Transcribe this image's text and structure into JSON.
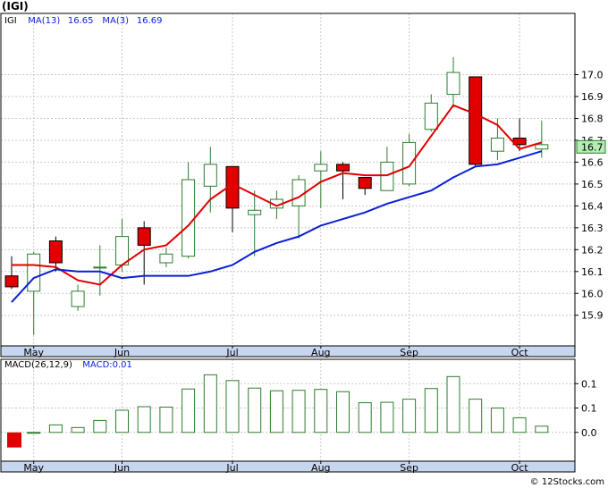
{
  "title": "(IGI)",
  "credit": "© 12Stocks.com",
  "colors": {
    "panel_bg": "#ffffff",
    "panel_border": "#000000",
    "grid": "#c8c8c8",
    "axis_strip": "#c7d6f0",
    "up_candle_stroke": "#2e7d2e",
    "down_candle_fill": "#e00000",
    "ma_fast": "#e00000",
    "ma_slow": "#0a1ed6",
    "macd_bar": "#2e7d2e",
    "macd_neg": "#e00000",
    "price_tag_bg": "#b4ecb4",
    "price_tag_border": "#2e7d2e"
  },
  "chart_data": [
    {
      "type": "candlestick",
      "legend": [
        {
          "label": "IGI",
          "color": "#000000"
        },
        {
          "label": "MA(13)",
          "color": "#0a1ed6"
        },
        {
          "label": "16.65",
          "color": "#0a1ed6"
        },
        {
          "label": "MA(3)",
          "color": "#0a1ed6"
        },
        {
          "label": "16.69",
          "color": "#0a1ed6"
        }
      ],
      "ylim": [
        15.76,
        17.28
      ],
      "yticks": [
        "15.9",
        "16.0",
        "16.1",
        "16.2",
        "16.3",
        "16.4",
        "16.5",
        "16.6",
        "16.7",
        "16.8",
        "16.9",
        "17.0"
      ],
      "xticks": [
        {
          "label": "May",
          "index": 1
        },
        {
          "label": "Jun",
          "index": 5
        },
        {
          "label": "Jul",
          "index": 10
        },
        {
          "label": "Aug",
          "index": 14
        },
        {
          "label": "Sep",
          "index": 18
        },
        {
          "label": "Oct",
          "index": 23
        }
      ],
      "last_price_label": "16.7",
      "last_price": 16.67,
      "candles": [
        {
          "o": 16.08,
          "h": 16.17,
          "l": 16.02,
          "c": 16.03
        },
        {
          "o": 16.01,
          "h": 16.19,
          "l": 15.81,
          "c": 16.18
        },
        {
          "o": 16.24,
          "h": 16.26,
          "l": 16.1,
          "c": 16.14
        },
        {
          "o": 15.94,
          "h": 16.04,
          "l": 15.92,
          "c": 16.01
        },
        {
          "o": 16.12,
          "h": 16.22,
          "l": 15.99,
          "c": 16.12
        },
        {
          "o": 16.13,
          "h": 16.34,
          "l": 16.1,
          "c": 16.26
        },
        {
          "o": 16.3,
          "h": 16.33,
          "l": 16.04,
          "c": 16.22
        },
        {
          "o": 16.14,
          "h": 16.21,
          "l": 16.12,
          "c": 16.18
        },
        {
          "o": 16.17,
          "h": 16.6,
          "l": 16.16,
          "c": 16.52
        },
        {
          "o": 16.49,
          "h": 16.67,
          "l": 16.37,
          "c": 16.59
        },
        {
          "o": 16.58,
          "h": 16.58,
          "l": 16.28,
          "c": 16.39
        },
        {
          "o": 16.36,
          "h": 16.47,
          "l": 16.17,
          "c": 16.38
        },
        {
          "o": 16.39,
          "h": 16.47,
          "l": 16.34,
          "c": 16.43
        },
        {
          "o": 16.4,
          "h": 16.54,
          "l": 16.25,
          "c": 16.52
        },
        {
          "o": 16.56,
          "h": 16.65,
          "l": 16.39,
          "c": 16.59
        },
        {
          "o": 16.59,
          "h": 16.6,
          "l": 16.43,
          "c": 16.56
        },
        {
          "o": 16.53,
          "h": 16.53,
          "l": 16.45,
          "c": 16.48
        },
        {
          "o": 16.47,
          "h": 16.67,
          "l": 16.47,
          "c": 16.6
        },
        {
          "o": 16.5,
          "h": 16.73,
          "l": 16.49,
          "c": 16.69
        },
        {
          "o": 16.75,
          "h": 16.91,
          "l": 16.74,
          "c": 16.87
        },
        {
          "o": 16.91,
          "h": 17.08,
          "l": 16.85,
          "c": 17.01
        },
        {
          "o": 16.99,
          "h": 16.99,
          "l": 16.58,
          "c": 16.59
        },
        {
          "o": 16.65,
          "h": 16.8,
          "l": 16.61,
          "c": 16.71
        },
        {
          "o": 16.71,
          "h": 16.8,
          "l": 16.65,
          "c": 16.68
        },
        {
          "o": 16.66,
          "h": 16.79,
          "l": 16.62,
          "c": 16.68
        }
      ],
      "series": [
        {
          "values": [
            16.13,
            16.13,
            16.12,
            16.06,
            16.04,
            16.13,
            16.2,
            16.22,
            16.31,
            16.43,
            16.5,
            16.45,
            16.4,
            16.44,
            16.51,
            16.55,
            16.54,
            16.54,
            16.58,
            16.72,
            16.86,
            16.82,
            16.77,
            16.66,
            16.69
          ]
        },
        {
          "values": [
            15.96,
            16.07,
            16.11,
            16.1,
            16.1,
            16.07,
            16.08,
            16.08,
            16.08,
            16.1,
            16.13,
            16.19,
            16.23,
            16.26,
            16.31,
            16.34,
            16.37,
            16.41,
            16.44,
            16.47,
            16.53,
            16.58,
            16.59,
            16.62,
            16.65
          ]
        }
      ]
    },
    {
      "type": "bar",
      "legend": [
        {
          "label": "MACD(26,12,9)",
          "color": "#000000"
        },
        {
          "label": "MACD:0.01",
          "color": "#0a1ed6"
        }
      ],
      "ylim": [
        -0.065,
        0.165
      ],
      "yticks": [
        {
          "label": "0.0",
          "value": 0.0
        },
        {
          "label": "0.1",
          "value": 0.055
        },
        {
          "label": "0.1",
          "value": 0.11
        }
      ],
      "xticks": [
        {
          "label": "May",
          "index": 1
        },
        {
          "label": "Jun",
          "index": 5
        },
        {
          "label": "Jul",
          "index": 10
        },
        {
          "label": "Aug",
          "index": 14
        },
        {
          "label": "Sep",
          "index": 18
        },
        {
          "label": "Oct",
          "index": 23
        }
      ],
      "values": [
        -0.034,
        0.0,
        0.017,
        0.011,
        0.027,
        0.05,
        0.058,
        0.057,
        0.098,
        0.13,
        0.117,
        0.1,
        0.094,
        0.095,
        0.097,
        0.092,
        0.067,
        0.068,
        0.075,
        0.099,
        0.126,
        0.075,
        0.055,
        0.033,
        0.014
      ]
    }
  ]
}
